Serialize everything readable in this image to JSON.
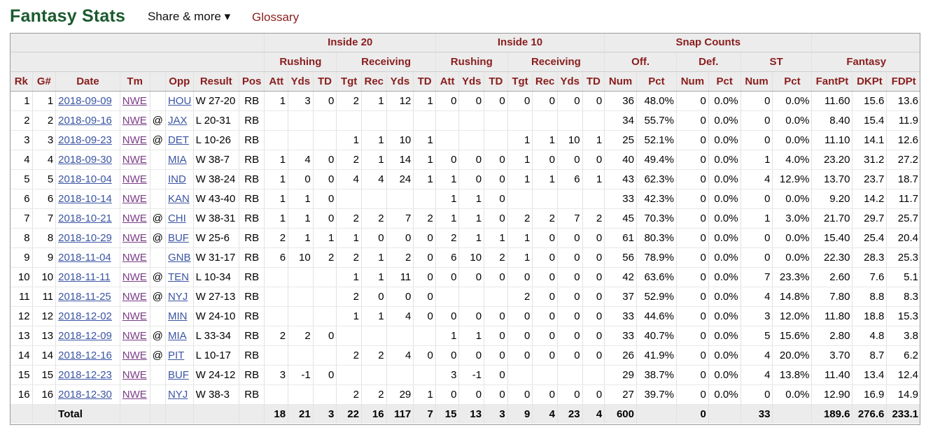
{
  "header": {
    "title": "Fantasy Stats",
    "share_label": "Share & more ▾",
    "glossary_label": "Glossary"
  },
  "table": {
    "groups": {
      "inside20": "Inside 20",
      "inside10": "Inside 10",
      "snap_counts": "Snap Counts",
      "rushing": "Rushing",
      "receiving": "Receiving",
      "off": "Off.",
      "def": "Def.",
      "st": "ST",
      "fantasy": "Fantasy"
    },
    "columns": [
      "Rk",
      "G#",
      "Date",
      "Tm",
      "",
      "Opp",
      "Result",
      "Pos",
      "Att",
      "Yds",
      "TD",
      "Tgt",
      "Rec",
      "Yds",
      "TD",
      "Att",
      "Yds",
      "TD",
      "Tgt",
      "Rec",
      "Yds",
      "TD",
      "Num",
      "Pct",
      "Num",
      "Pct",
      "Num",
      "Pct",
      "FantPt",
      "DKPt",
      "FDPt"
    ],
    "rows": [
      [
        "1",
        "1",
        "2018-09-09",
        "NWE",
        "",
        "HOU",
        "W 27-20",
        "RB",
        "1",
        "3",
        "0",
        "2",
        "1",
        "12",
        "1",
        "0",
        "0",
        "0",
        "0",
        "0",
        "0",
        "0",
        "36",
        "48.0%",
        "0",
        "0.0%",
        "0",
        "0.0%",
        "11.60",
        "15.6",
        "13.6"
      ],
      [
        "2",
        "2",
        "2018-09-16",
        "NWE",
        "@",
        "JAX",
        "L 20-31",
        "RB",
        "",
        "",
        "",
        "",
        "",
        "",
        "",
        "",
        "",
        "",
        "",
        "",
        "",
        "",
        "34",
        "55.7%",
        "0",
        "0.0%",
        "0",
        "0.0%",
        "8.40",
        "15.4",
        "11.9"
      ],
      [
        "3",
        "3",
        "2018-09-23",
        "NWE",
        "@",
        "DET",
        "L 10-26",
        "RB",
        "",
        "",
        "",
        "1",
        "1",
        "10",
        "1",
        "",
        "",
        "",
        "1",
        "1",
        "10",
        "1",
        "25",
        "52.1%",
        "0",
        "0.0%",
        "0",
        "0.0%",
        "11.10",
        "14.1",
        "12.6"
      ],
      [
        "4",
        "4",
        "2018-09-30",
        "NWE",
        "",
        "MIA",
        "W 38-7",
        "RB",
        "1",
        "4",
        "0",
        "2",
        "1",
        "14",
        "1",
        "0",
        "0",
        "0",
        "1",
        "0",
        "0",
        "0",
        "40",
        "49.4%",
        "0",
        "0.0%",
        "1",
        "4.0%",
        "23.20",
        "31.2",
        "27.2"
      ],
      [
        "5",
        "5",
        "2018-10-04",
        "NWE",
        "",
        "IND",
        "W 38-24",
        "RB",
        "1",
        "0",
        "0",
        "4",
        "4",
        "24",
        "1",
        "1",
        "0",
        "0",
        "1",
        "1",
        "6",
        "1",
        "43",
        "62.3%",
        "0",
        "0.0%",
        "4",
        "12.9%",
        "13.70",
        "23.7",
        "18.7"
      ],
      [
        "6",
        "6",
        "2018-10-14",
        "NWE",
        "",
        "KAN",
        "W 43-40",
        "RB",
        "1",
        "1",
        "0",
        "",
        "",
        "",
        "",
        "1",
        "1",
        "0",
        "",
        "",
        "",
        "",
        "33",
        "42.3%",
        "0",
        "0.0%",
        "0",
        "0.0%",
        "9.20",
        "14.2",
        "11.7"
      ],
      [
        "7",
        "7",
        "2018-10-21",
        "NWE",
        "@",
        "CHI",
        "W 38-31",
        "RB",
        "1",
        "1",
        "0",
        "2",
        "2",
        "7",
        "2",
        "1",
        "1",
        "0",
        "2",
        "2",
        "7",
        "2",
        "45",
        "70.3%",
        "0",
        "0.0%",
        "1",
        "3.0%",
        "21.70",
        "29.7",
        "25.7"
      ],
      [
        "8",
        "8",
        "2018-10-29",
        "NWE",
        "@",
        "BUF",
        "W 25-6",
        "RB",
        "2",
        "1",
        "1",
        "1",
        "0",
        "0",
        "0",
        "2",
        "1",
        "1",
        "1",
        "0",
        "0",
        "0",
        "61",
        "80.3%",
        "0",
        "0.0%",
        "0",
        "0.0%",
        "15.40",
        "25.4",
        "20.4"
      ],
      [
        "9",
        "9",
        "2018-11-04",
        "NWE",
        "",
        "GNB",
        "W 31-17",
        "RB",
        "6",
        "10",
        "2",
        "2",
        "1",
        "2",
        "0",
        "6",
        "10",
        "2",
        "1",
        "0",
        "0",
        "0",
        "56",
        "78.9%",
        "0",
        "0.0%",
        "0",
        "0.0%",
        "22.30",
        "28.3",
        "25.3"
      ],
      [
        "10",
        "10",
        "2018-11-11",
        "NWE",
        "@",
        "TEN",
        "L 10-34",
        "RB",
        "",
        "",
        "",
        "1",
        "1",
        "11",
        "0",
        "0",
        "0",
        "0",
        "0",
        "0",
        "0",
        "0",
        "42",
        "63.6%",
        "0",
        "0.0%",
        "7",
        "23.3%",
        "2.60",
        "7.6",
        "5.1"
      ],
      [
        "11",
        "11",
        "2018-11-25",
        "NWE",
        "@",
        "NYJ",
        "W 27-13",
        "RB",
        "",
        "",
        "",
        "2",
        "0",
        "0",
        "0",
        "",
        "",
        "",
        "2",
        "0",
        "0",
        "0",
        "37",
        "52.9%",
        "0",
        "0.0%",
        "4",
        "14.8%",
        "7.80",
        "8.8",
        "8.3"
      ],
      [
        "12",
        "12",
        "2018-12-02",
        "NWE",
        "",
        "MIN",
        "W 24-10",
        "RB",
        "",
        "",
        "",
        "1",
        "1",
        "4",
        "0",
        "0",
        "0",
        "0",
        "0",
        "0",
        "0",
        "0",
        "33",
        "44.6%",
        "0",
        "0.0%",
        "3",
        "12.0%",
        "11.80",
        "18.8",
        "15.3"
      ],
      [
        "13",
        "13",
        "2018-12-09",
        "NWE",
        "@",
        "MIA",
        "L 33-34",
        "RB",
        "2",
        "2",
        "0",
        "",
        "",
        "",
        "",
        "1",
        "1",
        "0",
        "0",
        "0",
        "0",
        "0",
        "33",
        "40.7%",
        "0",
        "0.0%",
        "5",
        "15.6%",
        "2.80",
        "4.8",
        "3.8"
      ],
      [
        "14",
        "14",
        "2018-12-16",
        "NWE",
        "@",
        "PIT",
        "L 10-17",
        "RB",
        "",
        "",
        "",
        "2",
        "2",
        "4",
        "0",
        "0",
        "0",
        "0",
        "0",
        "0",
        "0",
        "0",
        "26",
        "41.9%",
        "0",
        "0.0%",
        "4",
        "20.0%",
        "3.70",
        "8.7",
        "6.2"
      ],
      [
        "15",
        "15",
        "2018-12-23",
        "NWE",
        "",
        "BUF",
        "W 24-12",
        "RB",
        "3",
        "-1",
        "0",
        "",
        "",
        "",
        "",
        "3",
        "-1",
        "0",
        "",
        "",
        "",
        "",
        "29",
        "38.7%",
        "0",
        "0.0%",
        "4",
        "13.8%",
        "11.40",
        "13.4",
        "12.4"
      ],
      [
        "16",
        "16",
        "2018-12-30",
        "NWE",
        "",
        "NYJ",
        "W 38-3",
        "RB",
        "",
        "",
        "",
        "2",
        "2",
        "29",
        "1",
        "0",
        "0",
        "0",
        "0",
        "0",
        "0",
        "0",
        "27",
        "39.7%",
        "0",
        "0.0%",
        "0",
        "0.0%",
        "12.90",
        "16.9",
        "14.9"
      ]
    ],
    "totals": [
      "",
      "",
      "Total",
      "",
      "",
      "",
      "",
      "",
      "18",
      "21",
      "3",
      "22",
      "16",
      "117",
      "7",
      "15",
      "13",
      "3",
      "9",
      "4",
      "23",
      "4",
      "600",
      "",
      "0",
      "",
      "33",
      "",
      "189.6",
      "276.6",
      "233.1"
    ]
  }
}
